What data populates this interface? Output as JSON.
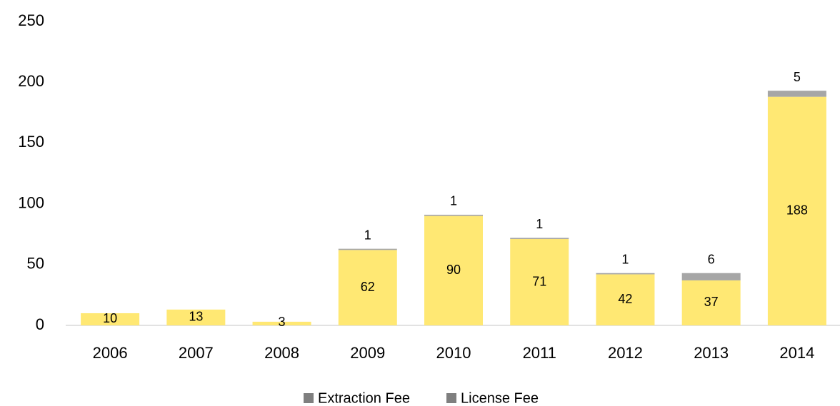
{
  "chart_data": {
    "type": "bar",
    "stacked": true,
    "categories": [
      "2006",
      "2007",
      "2008",
      "2009",
      "2010",
      "2011",
      "2012",
      "2013",
      "2014"
    ],
    "series": [
      {
        "name": "Extraction Fee",
        "color": "#ffe873",
        "legend_color": "#7f7f7f",
        "values": [
          10,
          13,
          3,
          62,
          90,
          71,
          42,
          37,
          188
        ]
      },
      {
        "name": "License Fee",
        "color": "#a6a6a6",
        "legend_color": "#7f7f7f",
        "values": [
          null,
          null,
          null,
          1,
          1,
          1,
          1,
          6,
          5
        ]
      }
    ],
    "ylim": [
      0,
      250
    ],
    "yticks": [
      0,
      50,
      100,
      150,
      200,
      250
    ],
    "grid": false,
    "legend": "bottom"
  }
}
